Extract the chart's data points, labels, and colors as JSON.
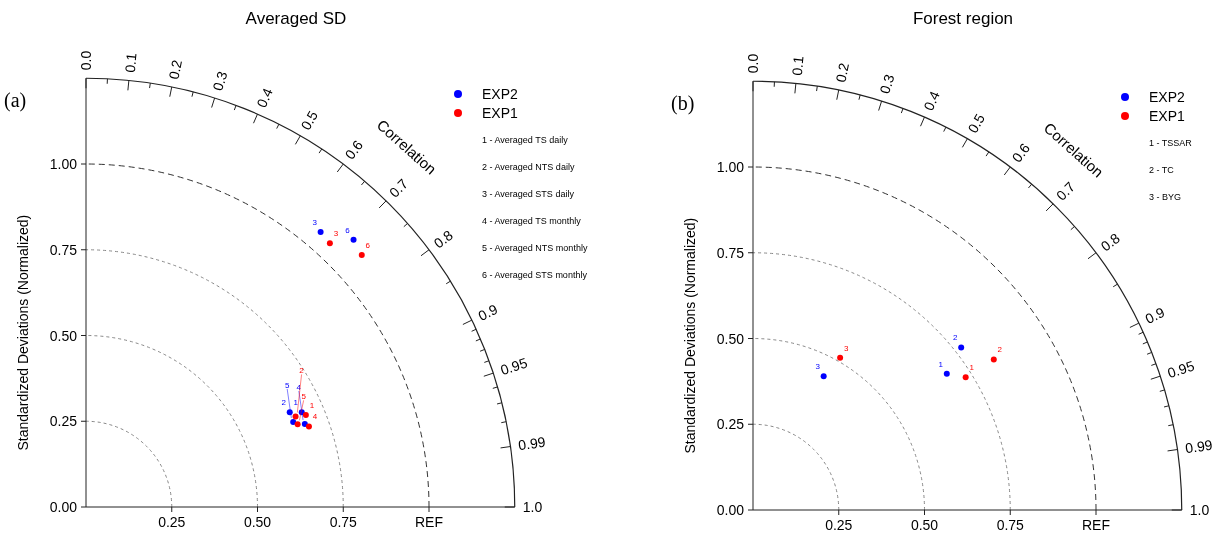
{
  "chart_data": [
    {
      "type": "scatter",
      "title": "Averaged SD",
      "ylabel": "Standardized Deviations (Normalized)",
      "annotations": [
        "(a)",
        "Correlation",
        "1 - Averaged TS daily",
        "2 - Averaged NTS daily",
        "3 - Averaged STS daily",
        "4 - Averaged TS monthly",
        "5 - Averaged NTS monthly",
        "6 - Averaged STS monthly",
        "0.0",
        "0.1",
        "0.2",
        "0.3",
        "0.4",
        "0.5",
        "0.6",
        "0.7",
        "0.8",
        "0.9",
        "0.95",
        "0.99",
        "1.0",
        {
          "text": "1",
          "x": 0.629,
          "y": 0.276
        },
        {
          "text": "2",
          "x": 0.594,
          "y": 0.276
        },
        {
          "text": "3",
          "x": 0.684,
          "y": 0.802
        },
        {
          "text": "4",
          "x": 0.638,
          "y": 0.242
        },
        {
          "text": "5",
          "x": 0.604,
          "y": 0.248
        },
        {
          "text": "6",
          "x": 0.78,
          "y": 0.779
        },
        {
          "text": "1",
          "x": 0.641,
          "y": 0.268
        },
        {
          "text": "2",
          "x": 0.611,
          "y": 0.264
        },
        {
          "text": "3",
          "x": 0.711,
          "y": 0.769
        },
        {
          "text": "4",
          "x": 0.65,
          "y": 0.235
        },
        {
          "text": "5",
          "x": 0.617,
          "y": 0.241
        },
        {
          "text": "6",
          "x": 0.804,
          "y": 0.735
        }
      ],
      "series": [
        {
          "name": "EXP2",
          "color": "#0000ff",
          "x": [
            0.629,
            0.594,
            0.684,
            0.638,
            0.604,
            0.78
          ],
          "values": [
            0.276,
            0.276,
            0.802,
            0.242,
            0.248,
            0.779
          ]
        },
        {
          "name": "EXP1",
          "color": "#ff0000",
          "x": [
            0.641,
            0.611,
            0.711,
            0.65,
            0.617,
            0.804
          ],
          "values": [
            0.268,
            0.264,
            0.769,
            0.235,
            0.241,
            0.735
          ]
        }
      ],
      "xlim": [
        0,
        1.25
      ],
      "ylim": [
        0,
        1.25
      ],
      "xticks": [
        {
          "value": 0.25,
          "label": "0.25"
        },
        {
          "value": 0.5,
          "label": "0.50"
        },
        {
          "value": 0.75,
          "label": "0.75"
        },
        {
          "value": 1,
          "label": "REF"
        }
      ],
      "yticks": [
        {
          "value": 0,
          "label": "0.00"
        },
        {
          "value": 0.25,
          "label": "0.25"
        },
        {
          "value": 0.5,
          "label": "0.50"
        },
        {
          "value": 0.75,
          "label": "0.75"
        },
        {
          "value": 1,
          "label": "1.00"
        }
      ],
      "marker": "circle",
      "legend": "top right"
    },
    {
      "type": "scatter",
      "title": "Forest region",
      "ylabel": "Standardized Deviations (Normalized)",
      "annotations": [
        "(b)",
        "Correlation",
        "1 - TSSAR",
        "2 - TC",
        "3 - BYG",
        "0.0",
        "0.1",
        "0.2",
        "0.3",
        "0.4",
        "0.5",
        "0.6",
        "0.7",
        "0.8",
        "0.9",
        "0.95",
        "0.99",
        "1.0",
        {
          "text": "1",
          "x": 0.565,
          "y": 0.397
        },
        {
          "text": "2",
          "x": 0.607,
          "y": 0.474
        },
        {
          "text": "3",
          "x": 0.206,
          "y": 0.39
        },
        {
          "text": "1",
          "x": 0.62,
          "y": 0.387
        },
        {
          "text": "2",
          "x": 0.702,
          "y": 0.439
        },
        {
          "text": "3",
          "x": 0.254,
          "y": 0.444
        }
      ],
      "series": [
        {
          "name": "EXP2",
          "color": "#0000ff",
          "x": [
            0.565,
            0.607,
            0.206
          ],
          "values": [
            0.397,
            0.474,
            0.39
          ]
        },
        {
          "name": "EXP1",
          "color": "#ff0000",
          "x": [
            0.62,
            0.702,
            0.254
          ],
          "values": [
            0.387,
            0.439,
            0.444
          ]
        }
      ],
      "xlim": [
        0,
        1.25
      ],
      "ylim": [
        0,
        1.25
      ],
      "xticks": [
        {
          "value": 0.25,
          "label": "0.25"
        },
        {
          "value": 0.5,
          "label": "0.50"
        },
        {
          "value": 0.75,
          "label": "0.75"
        },
        {
          "value": 1,
          "label": "REF"
        }
      ],
      "yticks": [
        {
          "value": 0,
          "label": "0.00"
        },
        {
          "value": 0.25,
          "label": "0.25"
        },
        {
          "value": 0.5,
          "label": "0.50"
        },
        {
          "value": 0.75,
          "label": "0.75"
        },
        {
          "value": 1,
          "label": "1.00"
        }
      ],
      "marker": "circle",
      "legend": "top right"
    }
  ]
}
